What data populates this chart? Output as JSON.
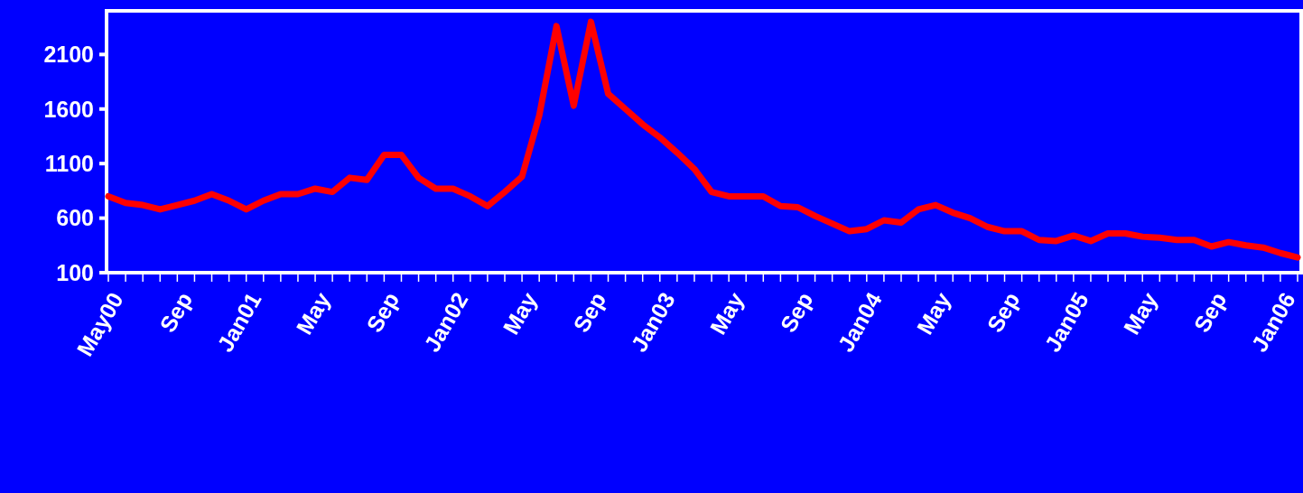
{
  "chart_data": {
    "type": "line",
    "categories": [
      "May00",
      null,
      null,
      null,
      "Sep",
      null,
      null,
      null,
      "Jan01",
      null,
      null,
      null,
      "May",
      null,
      null,
      null,
      "Sep",
      null,
      null,
      null,
      "Jan02",
      null,
      null,
      null,
      "May",
      null,
      null,
      null,
      "Sep",
      null,
      null,
      null,
      "Jan03",
      null,
      null,
      null,
      "May",
      null,
      null,
      null,
      "Sep",
      null,
      null,
      null,
      "Jan04",
      null,
      null,
      null,
      "May",
      null,
      null,
      null,
      "Sep",
      null,
      null,
      null,
      "Jan05",
      null,
      null,
      null,
      "May",
      null,
      null,
      null,
      "Sep",
      null,
      null,
      null,
      "Jan06",
      null
    ],
    "series": [
      {
        "color": "#ff0000",
        "values": [
          800,
          740,
          720,
          680,
          720,
          760,
          820,
          760,
          680,
          760,
          820,
          820,
          870,
          840,
          970,
          950,
          1180,
          1180,
          970,
          870,
          870,
          800,
          710,
          840,
          980,
          1540,
          2360,
          1630,
          2400,
          1740,
          1600,
          1460,
          1340,
          1200,
          1050,
          840,
          800,
          800,
          800,
          710,
          700,
          620,
          550,
          480,
          500,
          580,
          560,
          680,
          720,
          650,
          600,
          520,
          480,
          480,
          400,
          390,
          440,
          390,
          460,
          460,
          430,
          420,
          400,
          400,
          340,
          380,
          350,
          330,
          280,
          240
        ]
      }
    ],
    "ylim": [
      100,
      2500
    ],
    "yticks": [
      100,
      600,
      1100,
      1600,
      2100
    ],
    "grid": false,
    "marker": "none",
    "line_style": "solid"
  }
}
